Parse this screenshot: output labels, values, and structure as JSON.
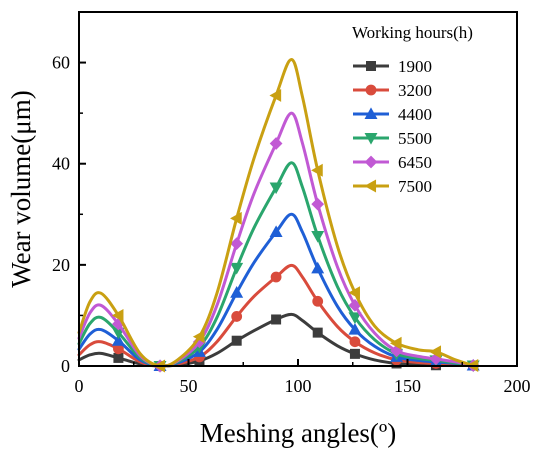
{
  "chart_data": {
    "type": "line",
    "title": "",
    "xlabel": "Meshing angles(º)",
    "ylabel": "Wear volume(μm)",
    "xlim": [
      0,
      200
    ],
    "ylim": [
      0,
      70
    ],
    "x_ticks": [
      "0",
      "50",
      "100",
      "150",
      "200"
    ],
    "y_ticks": [
      "0",
      "20",
      "40",
      "60"
    ],
    "grid": false,
    "legend": {
      "title": "Working hours(h)",
      "placement": "top-right"
    },
    "series": [
      {
        "name": "1900",
        "color": "#3c3c3c",
        "marker": "square",
        "points": [
          [
            0,
            1.2
          ],
          [
            5,
            2.2
          ],
          [
            10,
            2.5
          ],
          [
            18,
            1.6
          ],
          [
            28,
            0.4
          ],
          [
            37,
            0.0
          ],
          [
            45,
            0.2
          ],
          [
            55,
            1.0
          ],
          [
            63,
            2.5
          ],
          [
            72,
            5.0
          ],
          [
            80,
            7.0
          ],
          [
            90,
            9.2
          ],
          [
            97,
            10.2
          ],
          [
            102,
            9.0
          ],
          [
            109,
            6.6
          ],
          [
            118,
            4.0
          ],
          [
            126,
            2.4
          ],
          [
            135,
            1.2
          ],
          [
            145,
            0.5
          ],
          [
            155,
            0.25
          ],
          [
            163,
            0.15
          ],
          [
            172,
            0.1
          ],
          [
            180,
            0.1
          ]
        ],
        "marker_x": [
          18,
          37,
          55,
          72,
          90,
          109,
          126,
          145,
          163,
          180
        ]
      },
      {
        "name": "3200",
        "color": "#d94b3c",
        "marker": "circle",
        "points": [
          [
            0,
            2.2
          ],
          [
            5,
            4.2
          ],
          [
            10,
            4.8
          ],
          [
            18,
            3.4
          ],
          [
            28,
            0.8
          ],
          [
            37,
            0.0
          ],
          [
            45,
            0.4
          ],
          [
            55,
            1.8
          ],
          [
            63,
            4.8
          ],
          [
            72,
            9.8
          ],
          [
            80,
            13.8
          ],
          [
            90,
            17.6
          ],
          [
            97,
            19.9
          ],
          [
            102,
            17.6
          ],
          [
            109,
            12.8
          ],
          [
            118,
            7.8
          ],
          [
            126,
            4.8
          ],
          [
            135,
            2.6
          ],
          [
            145,
            1.2
          ],
          [
            155,
            0.7
          ],
          [
            163,
            0.5
          ],
          [
            172,
            0.3
          ],
          [
            180,
            0.1
          ]
        ],
        "marker_x": [
          18,
          37,
          55,
          72,
          90,
          109,
          126,
          145,
          163,
          180
        ]
      },
      {
        "name": "4400",
        "color": "#1f5fd6",
        "marker": "triangle-up",
        "points": [
          [
            0,
            3.3
          ],
          [
            5,
            6.3
          ],
          [
            10,
            7.2
          ],
          [
            18,
            5.0
          ],
          [
            28,
            1.2
          ],
          [
            37,
            0.0
          ],
          [
            45,
            0.6
          ],
          [
            55,
            2.8
          ],
          [
            63,
            7.2
          ],
          [
            72,
            14.5
          ],
          [
            80,
            20.5
          ],
          [
            90,
            26.5
          ],
          [
            97,
            30.0
          ],
          [
            102,
            26.5
          ],
          [
            109,
            19.3
          ],
          [
            118,
            11.8
          ],
          [
            126,
            7.2
          ],
          [
            135,
            3.9
          ],
          [
            145,
            1.8
          ],
          [
            155,
            1.1
          ],
          [
            163,
            0.8
          ],
          [
            172,
            0.5
          ],
          [
            180,
            0.1
          ]
        ],
        "marker_x": [
          18,
          37,
          55,
          72,
          90,
          109,
          126,
          145,
          163,
          180
        ]
      },
      {
        "name": "5500",
        "color": "#2aa66d",
        "marker": "triangle-down",
        "points": [
          [
            0,
            4.4
          ],
          [
            5,
            8.4
          ],
          [
            10,
            9.6
          ],
          [
            18,
            6.6
          ],
          [
            28,
            1.6
          ],
          [
            37,
            0.0
          ],
          [
            45,
            0.8
          ],
          [
            55,
            3.8
          ],
          [
            63,
            9.6
          ],
          [
            72,
            19.4
          ],
          [
            80,
            27.4
          ],
          [
            90,
            35.3
          ],
          [
            97,
            40.2
          ],
          [
            102,
            35.4
          ],
          [
            109,
            25.7
          ],
          [
            118,
            15.7
          ],
          [
            126,
            9.6
          ],
          [
            135,
            5.2
          ],
          [
            145,
            2.4
          ],
          [
            155,
            1.5
          ],
          [
            163,
            1.1
          ],
          [
            172,
            0.6
          ],
          [
            180,
            0.1
          ]
        ],
        "marker_x": [
          18,
          37,
          55,
          72,
          90,
          109,
          126,
          145,
          163,
          180
        ]
      },
      {
        "name": "6450",
        "color": "#c159d4",
        "marker": "diamond",
        "points": [
          [
            0,
            5.5
          ],
          [
            5,
            10.5
          ],
          [
            10,
            12.0
          ],
          [
            18,
            8.3
          ],
          [
            28,
            2.0
          ],
          [
            37,
            0.0
          ],
          [
            45,
            1.0
          ],
          [
            55,
            4.8
          ],
          [
            63,
            12.0
          ],
          [
            72,
            24.2
          ],
          [
            80,
            34.2
          ],
          [
            90,
            44.0
          ],
          [
            97,
            50.0
          ],
          [
            102,
            44.1
          ],
          [
            109,
            32.0
          ],
          [
            118,
            19.6
          ],
          [
            126,
            12.0
          ],
          [
            135,
            6.5
          ],
          [
            145,
            3.0
          ],
          [
            155,
            1.9
          ],
          [
            163,
            1.4
          ],
          [
            172,
            0.8
          ],
          [
            180,
            0.1
          ]
        ],
        "marker_x": [
          18,
          37,
          55,
          72,
          90,
          109,
          126,
          145,
          163,
          180
        ]
      },
      {
        "name": "7500",
        "color": "#c9a012",
        "marker": "triangle-left",
        "points": [
          [
            0,
            6.6
          ],
          [
            5,
            12.7
          ],
          [
            10,
            14.4
          ],
          [
            18,
            10.0
          ],
          [
            28,
            2.4
          ],
          [
            37,
            0.0
          ],
          [
            45,
            1.2
          ],
          [
            55,
            5.8
          ],
          [
            63,
            14.4
          ],
          [
            72,
            29.2
          ],
          [
            80,
            41.2
          ],
          [
            90,
            53.5
          ],
          [
            97,
            60.6
          ],
          [
            102,
            53.3
          ],
          [
            109,
            38.7
          ],
          [
            118,
            23.7
          ],
          [
            126,
            14.5
          ],
          [
            135,
            7.9
          ],
          [
            145,
            4.5
          ],
          [
            155,
            3.2
          ],
          [
            163,
            2.8
          ],
          [
            172,
            1.2
          ],
          [
            180,
            0.1
          ]
        ],
        "marker_x": [
          18,
          37,
          55,
          72,
          90,
          109,
          126,
          145,
          163,
          180
        ]
      }
    ]
  }
}
